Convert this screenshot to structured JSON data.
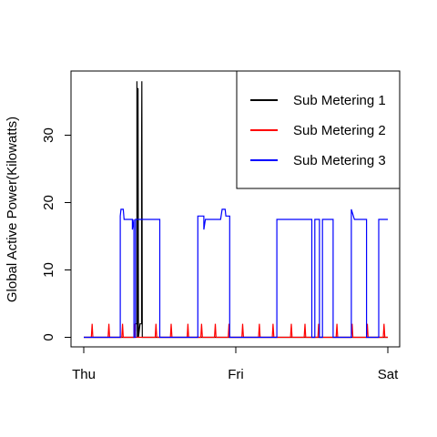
{
  "chart_data": {
    "type": "line",
    "title": "",
    "xlabel": "",
    "ylabel": "Global Active Power(Kilowatts)",
    "x_tick_labels": [
      "Thu",
      "Fri",
      "Sat"
    ],
    "x_unit": "days",
    "xlim": [
      0,
      2
    ],
    "ylim": [
      0,
      38
    ],
    "y_ticks": [
      0,
      10,
      20,
      30
    ],
    "legend_position": "top-right",
    "grid": false,
    "series": [
      {
        "name": "Sub Metering 1",
        "color": "#000000",
        "points": [
          [
            0.0,
            0
          ],
          [
            0.33,
            0
          ],
          [
            0.33,
            1
          ],
          [
            0.34,
            1
          ],
          [
            0.34,
            2
          ],
          [
            0.35,
            2
          ],
          [
            0.35,
            38
          ],
          [
            0.352,
            0
          ],
          [
            0.357,
            37
          ],
          [
            0.36,
            0
          ],
          [
            0.37,
            2
          ],
          [
            0.38,
            2
          ],
          [
            0.38,
            28
          ],
          [
            0.382,
            38
          ],
          [
            0.385,
            0
          ],
          [
            0.39,
            0
          ],
          [
            2.0,
            0
          ]
        ]
      },
      {
        "name": "Sub Metering 2",
        "color": "#FF0000",
        "points": [
          [
            0.0,
            0
          ],
          [
            0.05,
            0
          ],
          [
            0.055,
            2
          ],
          [
            0.06,
            0
          ],
          [
            0.16,
            0
          ],
          [
            0.165,
            2
          ],
          [
            0.17,
            0
          ],
          [
            0.25,
            0
          ],
          [
            0.255,
            2
          ],
          [
            0.26,
            0
          ],
          [
            0.33,
            0
          ],
          [
            0.335,
            2
          ],
          [
            0.34,
            0
          ],
          [
            0.47,
            0
          ],
          [
            0.475,
            2
          ],
          [
            0.48,
            0
          ],
          [
            0.57,
            0
          ],
          [
            0.575,
            2
          ],
          [
            0.58,
            0
          ],
          [
            0.68,
            0
          ],
          [
            0.685,
            2
          ],
          [
            0.69,
            0
          ],
          [
            0.77,
            0
          ],
          [
            0.775,
            2
          ],
          [
            0.78,
            0
          ],
          [
            0.86,
            0
          ],
          [
            0.865,
            2
          ],
          [
            0.87,
            0
          ],
          [
            0.95,
            0
          ],
          [
            0.955,
            2
          ],
          [
            0.96,
            0
          ],
          [
            1.04,
            0
          ],
          [
            1.045,
            2
          ],
          [
            1.05,
            0
          ],
          [
            1.15,
            0
          ],
          [
            1.155,
            2
          ],
          [
            1.16,
            0
          ],
          [
            1.24,
            0
          ],
          [
            1.245,
            2
          ],
          [
            1.25,
            0
          ],
          [
            1.36,
            0
          ],
          [
            1.365,
            2
          ],
          [
            1.37,
            0
          ],
          [
            1.45,
            0
          ],
          [
            1.455,
            2
          ],
          [
            1.46,
            0
          ],
          [
            1.54,
            0
          ],
          [
            1.545,
            2
          ],
          [
            1.55,
            0
          ],
          [
            1.66,
            0
          ],
          [
            1.665,
            2
          ],
          [
            1.67,
            0
          ],
          [
            1.76,
            0
          ],
          [
            1.765,
            2
          ],
          [
            1.77,
            0
          ],
          [
            1.86,
            0
          ],
          [
            1.865,
            2
          ],
          [
            1.87,
            0
          ],
          [
            1.97,
            0
          ],
          [
            1.975,
            2
          ],
          [
            1.98,
            0
          ],
          [
            2.0,
            0
          ]
        ]
      },
      {
        "name": "Sub Metering 3",
        "color": "#0000FF",
        "points": [
          [
            0.0,
            0
          ],
          [
            0.24,
            0
          ],
          [
            0.24,
            18
          ],
          [
            0.245,
            19
          ],
          [
            0.26,
            19
          ],
          [
            0.265,
            17.5
          ],
          [
            0.32,
            17.5
          ],
          [
            0.32,
            16
          ],
          [
            0.33,
            17.5
          ],
          [
            0.33,
            0
          ],
          [
            0.34,
            0
          ],
          [
            0.34,
            17.5
          ],
          [
            0.5,
            17.5
          ],
          [
            0.5,
            0
          ],
          [
            0.75,
            0
          ],
          [
            0.75,
            18
          ],
          [
            0.79,
            18
          ],
          [
            0.79,
            16
          ],
          [
            0.8,
            17.5
          ],
          [
            0.9,
            17.5
          ],
          [
            0.91,
            19
          ],
          [
            0.93,
            19
          ],
          [
            0.935,
            18
          ],
          [
            0.96,
            18
          ],
          [
            0.96,
            0
          ],
          [
            1.27,
            0
          ],
          [
            1.27,
            17.5
          ],
          [
            1.5,
            17.5
          ],
          [
            1.5,
            0
          ],
          [
            1.52,
            0
          ],
          [
            1.52,
            17.5
          ],
          [
            1.55,
            17.5
          ],
          [
            1.55,
            0
          ],
          [
            1.57,
            0
          ],
          [
            1.57,
            17.5
          ],
          [
            1.64,
            17.5
          ],
          [
            1.64,
            0
          ],
          [
            1.76,
            0
          ],
          [
            1.76,
            19
          ],
          [
            1.78,
            17.5
          ],
          [
            1.86,
            17.5
          ],
          [
            1.86,
            0
          ],
          [
            1.94,
            0
          ],
          [
            1.94,
            17.5
          ],
          [
            2.0,
            17.5
          ]
        ]
      }
    ]
  }
}
